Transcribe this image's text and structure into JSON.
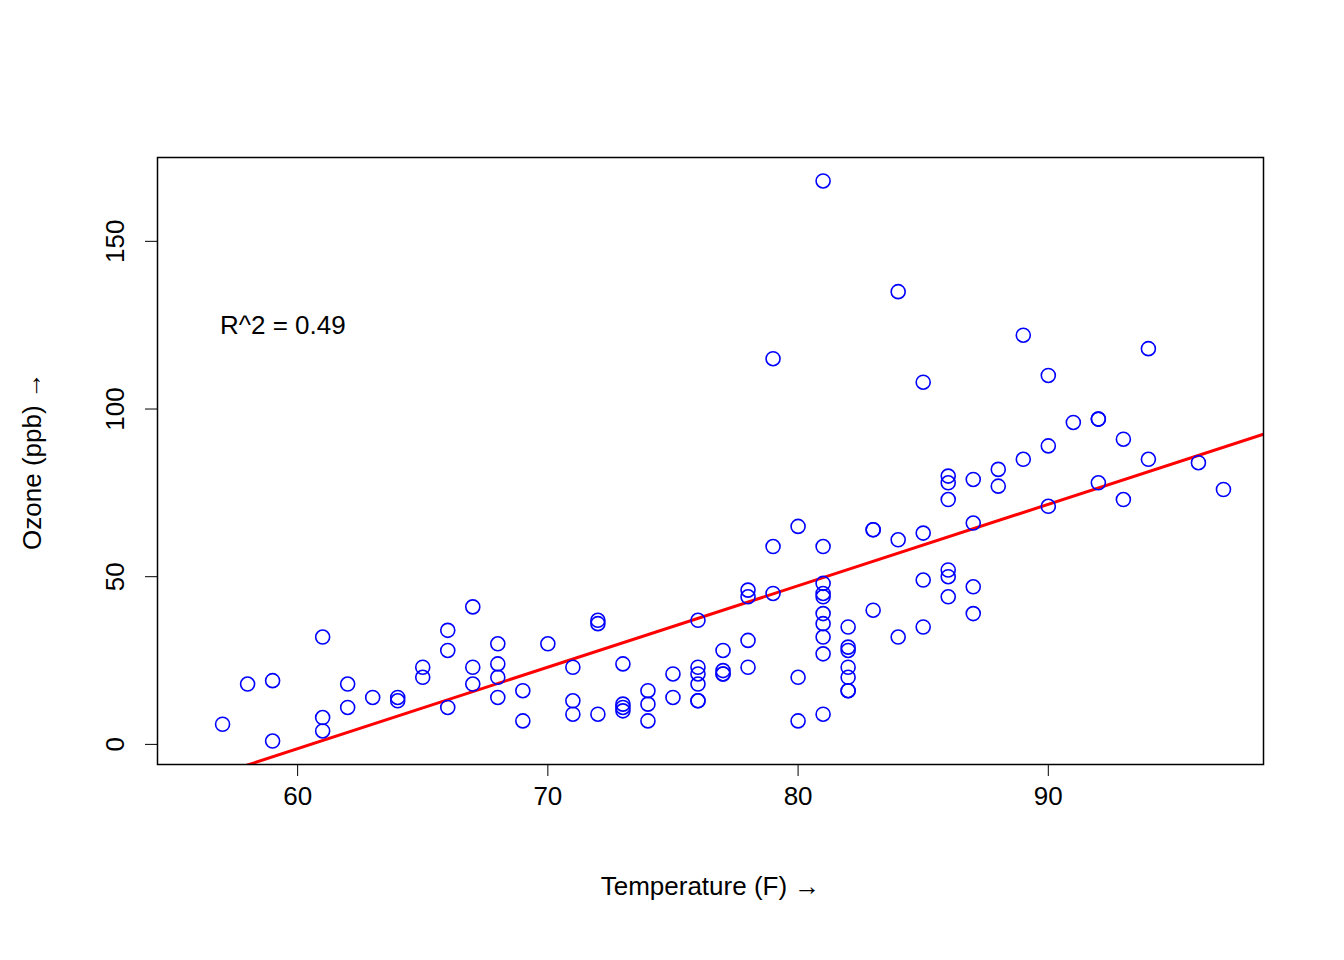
{
  "chart_data": {
    "type": "scatter",
    "x_label": "Temperature (F)",
    "y_label": "Ozone (ppb)",
    "x": [
      67,
      72,
      74,
      62,
      66,
      65,
      59,
      61,
      74,
      69,
      66,
      68,
      58,
      64,
      66,
      57,
      68,
      62,
      59,
      73,
      61,
      61,
      67,
      81,
      79,
      76,
      82,
      90,
      87,
      82,
      77,
      72,
      65,
      73,
      76,
      84,
      85,
      81,
      83,
      83,
      88,
      92,
      92,
      89,
      73,
      81,
      80,
      81,
      82,
      84,
      87,
      85,
      74,
      86,
      85,
      82,
      86,
      88,
      86,
      83,
      81,
      81,
      81,
      82,
      86,
      85,
      87,
      89,
      90,
      90,
      86,
      82,
      80,
      77,
      79,
      76,
      78,
      78,
      77,
      72,
      79,
      81,
      86,
      97,
      94,
      96,
      94,
      91,
      92,
      93,
      93,
      87,
      84,
      80,
      78,
      75,
      73,
      81,
      76,
      77,
      71,
      71,
      78,
      67,
      76,
      68,
      82,
      64,
      71,
      81,
      69,
      63,
      70,
      75,
      76,
      68
    ],
    "values": [
      41,
      36,
      12,
      18,
      28,
      23,
      19,
      8,
      7,
      16,
      11,
      14,
      18,
      14,
      34,
      6,
      30,
      11,
      1,
      11,
      4,
      32,
      23,
      45,
      115,
      37,
      29,
      71,
      39,
      23,
      21,
      37,
      20,
      12,
      13,
      135,
      49,
      32,
      64,
      40,
      77,
      97,
      97,
      85,
      10,
      27,
      7,
      48,
      35,
      61,
      79,
      63,
      16,
      80,
      108,
      20,
      52,
      82,
      50,
      64,
      59,
      39,
      9,
      16,
      78,
      35,
      66,
      122,
      89,
      110,
      44,
      28,
      65,
      22,
      59,
      23,
      31,
      44,
      21,
      9,
      45,
      168,
      73,
      76,
      118,
      84,
      85,
      96,
      78,
      73,
      91,
      47,
      32,
      20,
      23,
      21,
      24,
      44,
      21,
      28,
      9,
      13,
      46,
      18,
      13,
      24,
      16,
      13,
      23,
      36,
      7,
      14,
      30,
      14,
      18,
      20
    ],
    "color": "blue",
    "marker": "open circle",
    "trend_line": {
      "x": [
        54.4,
        98.6
      ],
      "y": [
        -14.88,
        92.47
      ],
      "color": "red"
    },
    "annotations": [
      {
        "text": "R^2 = 0.49",
        "x": 56.9,
        "y": 125
      }
    ],
    "xlim": [
      54.4,
      98.6
    ],
    "ylim": [
      -6,
      175
    ],
    "xticks": [
      60,
      70,
      80,
      90
    ],
    "yticks": [
      0,
      50,
      100,
      150
    ],
    "grid": false
  }
}
